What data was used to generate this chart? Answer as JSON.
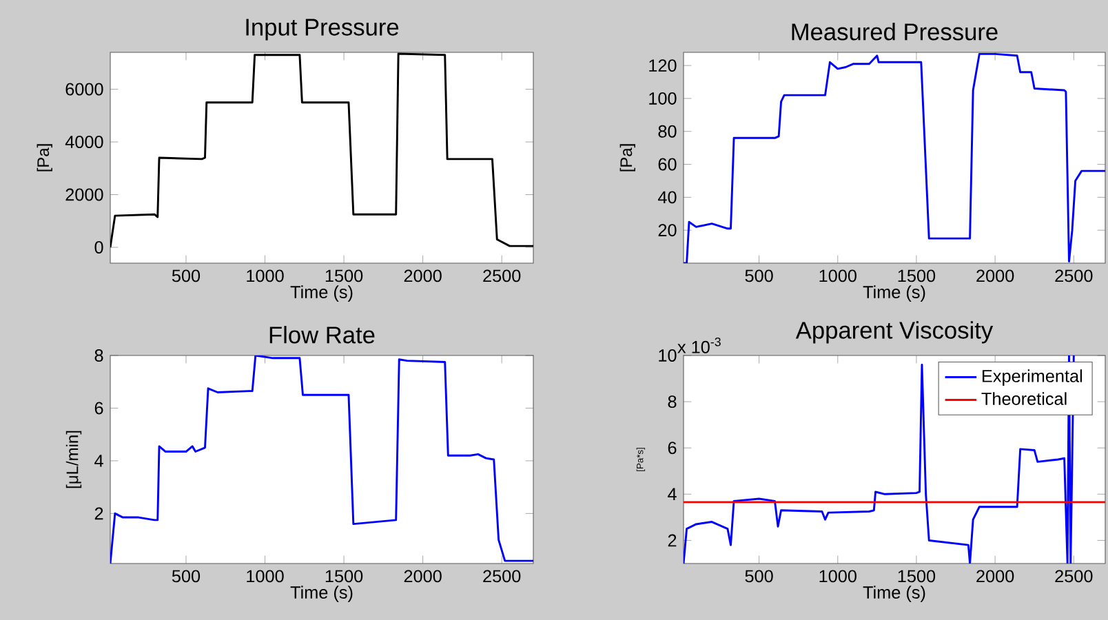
{
  "chart_data": [
    {
      "type": "line",
      "title": "Input Pressure",
      "xlabel": "Time (s)",
      "ylabel": "[Pa]",
      "xlim": [
        20,
        2700
      ],
      "ylim": [
        -600,
        7400
      ],
      "xticks": [
        500,
        1000,
        1500,
        2000,
        2500
      ],
      "yticks": [
        0,
        2000,
        4000,
        6000
      ],
      "series": [
        {
          "color": "#000000",
          "x": [
            20,
            50,
            300,
            320,
            330,
            600,
            620,
            630,
            920,
            935,
            1220,
            1235,
            1530,
            1560,
            1830,
            1845,
            2140,
            2155,
            2440,
            2470,
            2550,
            2700
          ],
          "values": [
            0,
            1200,
            1250,
            1150,
            3400,
            3350,
            3400,
            5500,
            5500,
            7300,
            7300,
            5500,
            5500,
            1250,
            1250,
            7350,
            7300,
            3350,
            3350,
            300,
            50,
            50
          ]
        }
      ]
    },
    {
      "type": "line",
      "title": "Measured Pressure",
      "xlabel": "Time (s)",
      "ylabel": "[Pa]",
      "xlim": [
        20,
        2700
      ],
      "ylim": [
        0,
        128
      ],
      "xticks": [
        500,
        1000,
        1500,
        2000,
        2500
      ],
      "yticks": [
        20,
        40,
        60,
        80,
        100,
        120
      ],
      "series": [
        {
          "color": "#0000ff",
          "x": [
            20,
            40,
            55,
            100,
            200,
            300,
            320,
            340,
            600,
            625,
            640,
            660,
            900,
            920,
            950,
            1000,
            1050,
            1100,
            1200,
            1250,
            1260,
            1530,
            1580,
            1840,
            1860,
            1900,
            2000,
            2140,
            2160,
            2230,
            2250,
            2440,
            2450,
            2470,
            2490,
            2510,
            2550,
            2700
          ],
          "values": [
            0,
            0,
            25,
            22,
            24,
            21,
            21,
            76,
            76,
            77,
            98,
            102,
            102,
            102,
            122,
            118,
            119,
            121,
            121,
            126,
            122,
            122,
            15,
            15,
            105,
            127,
            127,
            126,
            116,
            116,
            106,
            105,
            104,
            1,
            20,
            50,
            56,
            56
          ]
        }
      ]
    },
    {
      "type": "line",
      "title": "Flow Rate",
      "xlabel": "Time (s)",
      "ylabel": "[μL/min]",
      "xlim": [
        20,
        2700
      ],
      "ylim": [
        0.1,
        8
      ],
      "xticks": [
        500,
        1000,
        1500,
        2000,
        2500
      ],
      "yticks": [
        2,
        4,
        6,
        8
      ],
      "series": [
        {
          "color": "#0000ff",
          "x": [
            20,
            50,
            100,
            200,
            300,
            320,
            330,
            370,
            500,
            540,
            560,
            620,
            640,
            700,
            900,
            920,
            940,
            1050,
            1220,
            1240,
            1530,
            1560,
            1830,
            1850,
            1900,
            2140,
            2160,
            2300,
            2350,
            2400,
            2450,
            2480,
            2520,
            2700
          ],
          "values": [
            0.1,
            2.0,
            1.85,
            1.85,
            1.75,
            1.75,
            4.55,
            4.35,
            4.35,
            4.55,
            4.35,
            4.5,
            6.75,
            6.6,
            6.65,
            6.65,
            8.0,
            7.9,
            7.9,
            6.5,
            6.5,
            1.6,
            1.75,
            7.85,
            7.8,
            7.75,
            4.2,
            4.2,
            4.25,
            4.1,
            4.05,
            1.0,
            0.2,
            0.2
          ]
        }
      ]
    },
    {
      "type": "line",
      "title": "Apparent Viscosity",
      "xlabel": "Time (s)",
      "ylabel": "[Pa*s]",
      "xlim": [
        20,
        2700
      ],
      "ylim": [
        1,
        10
      ],
      "xticks": [
        500,
        1000,
        1500,
        2000,
        2500
      ],
      "yticks": [
        2,
        4,
        6,
        8,
        10
      ],
      "legend": "top right",
      "annotations": [
        "x 10$^{-3}$"
      ],
      "series": [
        {
          "name": "Experimental",
          "color": "#0000ff",
          "x": [
            20,
            40,
            100,
            200,
            300,
            320,
            340,
            500,
            600,
            620,
            640,
            900,
            920,
            940,
            1200,
            1230,
            1240,
            1300,
            1500,
            1520,
            1535,
            1560,
            1580,
            1830,
            1840,
            1860,
            1900,
            2140,
            2160,
            2250,
            2270,
            2400,
            2440,
            2460,
            2470,
            2480,
            2500
          ],
          "values": [
            1.0,
            2.5,
            2.7,
            2.8,
            2.5,
            1.8,
            3.7,
            3.8,
            3.7,
            2.6,
            3.3,
            3.25,
            2.9,
            3.2,
            3.25,
            3.3,
            4.1,
            4.0,
            4.05,
            4.1,
            9.6,
            4.0,
            2.0,
            1.8,
            1.0,
            2.9,
            3.45,
            3.45,
            5.95,
            5.9,
            5.4,
            5.5,
            5.55,
            1.0,
            10,
            1.0,
            10
          ]
        },
        {
          "name": "Theoretical",
          "color": "#ff0000",
          "x": [
            20,
            2700
          ],
          "values": [
            3.65,
            3.65
          ]
        }
      ]
    }
  ]
}
